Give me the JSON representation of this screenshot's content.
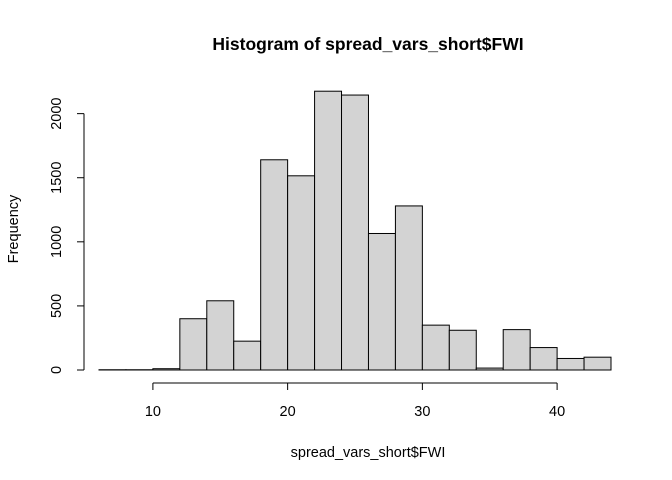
{
  "chart_data": {
    "type": "bar",
    "title": "Histogram of spread_vars_short$FWI",
    "xlabel": "spread_vars_short$FWI",
    "ylabel": "Frequency",
    "bin_edges": [
      6,
      8,
      10,
      12,
      14,
      16,
      18,
      20,
      22,
      24,
      26,
      28,
      30,
      32,
      34,
      36,
      38,
      40,
      42,
      44
    ],
    "values": [
      2,
      2,
      10,
      400,
      540,
      225,
      1640,
      1515,
      2175,
      2145,
      1065,
      1280,
      350,
      310,
      15,
      315,
      175,
      90,
      100
    ],
    "xlim": [
      6,
      44
    ],
    "ylim": [
      0,
      2200
    ],
    "xticks": [
      10,
      20,
      30,
      40
    ],
    "yticks": [
      0,
      500,
      1000,
      1500,
      2000
    ],
    "bar_fill": "#d3d3d3",
    "bar_edge": "#000000",
    "grid": false,
    "legend": "none"
  }
}
